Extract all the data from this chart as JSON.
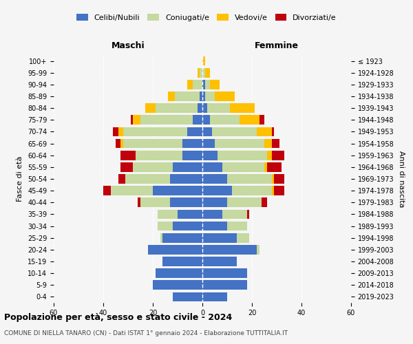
{
  "age_groups": [
    "0-4",
    "5-9",
    "10-14",
    "15-19",
    "20-24",
    "25-29",
    "30-34",
    "35-39",
    "40-44",
    "45-49",
    "50-54",
    "55-59",
    "60-64",
    "65-69",
    "70-74",
    "75-79",
    "80-84",
    "85-89",
    "90-94",
    "95-99",
    "100+"
  ],
  "birth_years": [
    "2019-2023",
    "2014-2018",
    "2009-2013",
    "2004-2008",
    "1999-2003",
    "1994-1998",
    "1989-1993",
    "1984-1988",
    "1979-1983",
    "1974-1978",
    "1969-1973",
    "1964-1968",
    "1959-1963",
    "1954-1958",
    "1949-1953",
    "1944-1948",
    "1939-1943",
    "1934-1938",
    "1929-1933",
    "1924-1928",
    "≤ 1923"
  ],
  "males": {
    "celibi": [
      12,
      20,
      19,
      16,
      22,
      16,
      12,
      10,
      13,
      20,
      13,
      12,
      8,
      8,
      6,
      4,
      2,
      1,
      0,
      0,
      0
    ],
    "coniugati": [
      0,
      0,
      0,
      0,
      0,
      1,
      6,
      8,
      12,
      17,
      18,
      16,
      19,
      24,
      26,
      21,
      17,
      10,
      4,
      1,
      0
    ],
    "vedovi": [
      0,
      0,
      0,
      0,
      0,
      0,
      0,
      0,
      0,
      0,
      0,
      0,
      0,
      1,
      2,
      3,
      4,
      3,
      2,
      1,
      0
    ],
    "divorziati": [
      0,
      0,
      0,
      0,
      0,
      0,
      0,
      0,
      1,
      3,
      3,
      5,
      6,
      2,
      2,
      1,
      0,
      0,
      0,
      0,
      0
    ]
  },
  "females": {
    "nubili": [
      10,
      18,
      18,
      14,
      22,
      14,
      10,
      8,
      10,
      12,
      10,
      8,
      6,
      5,
      4,
      3,
      2,
      1,
      1,
      0,
      0
    ],
    "coniugate": [
      0,
      0,
      0,
      0,
      1,
      5,
      8,
      10,
      14,
      16,
      18,
      17,
      20,
      20,
      18,
      12,
      9,
      4,
      2,
      1,
      0
    ],
    "vedove": [
      0,
      0,
      0,
      0,
      0,
      0,
      0,
      0,
      0,
      1,
      1,
      1,
      2,
      3,
      6,
      8,
      10,
      8,
      4,
      2,
      1
    ],
    "divorziate": [
      0,
      0,
      0,
      0,
      0,
      0,
      0,
      1,
      2,
      4,
      4,
      6,
      5,
      3,
      1,
      2,
      0,
      0,
      0,
      0,
      0
    ]
  },
  "color_celibi": "#4472c4",
  "color_coniugati": "#c5d9a0",
  "color_vedovi": "#ffc000",
  "color_divorziati": "#c0000c",
  "xlim": 60,
  "title": "Popolazione per età, sesso e stato civile - 2024",
  "subtitle": "COMUNE DI NIELLA TANARO (CN) - Dati ISTAT 1° gennaio 2024 - Elaborazione TUTTITALIA.IT",
  "ylabel_left": "Fasce di età",
  "ylabel_right": "Anni di nascita",
  "xlabel_left": "Maschi",
  "xlabel_right": "Femmine",
  "background_color": "#f5f5f5"
}
